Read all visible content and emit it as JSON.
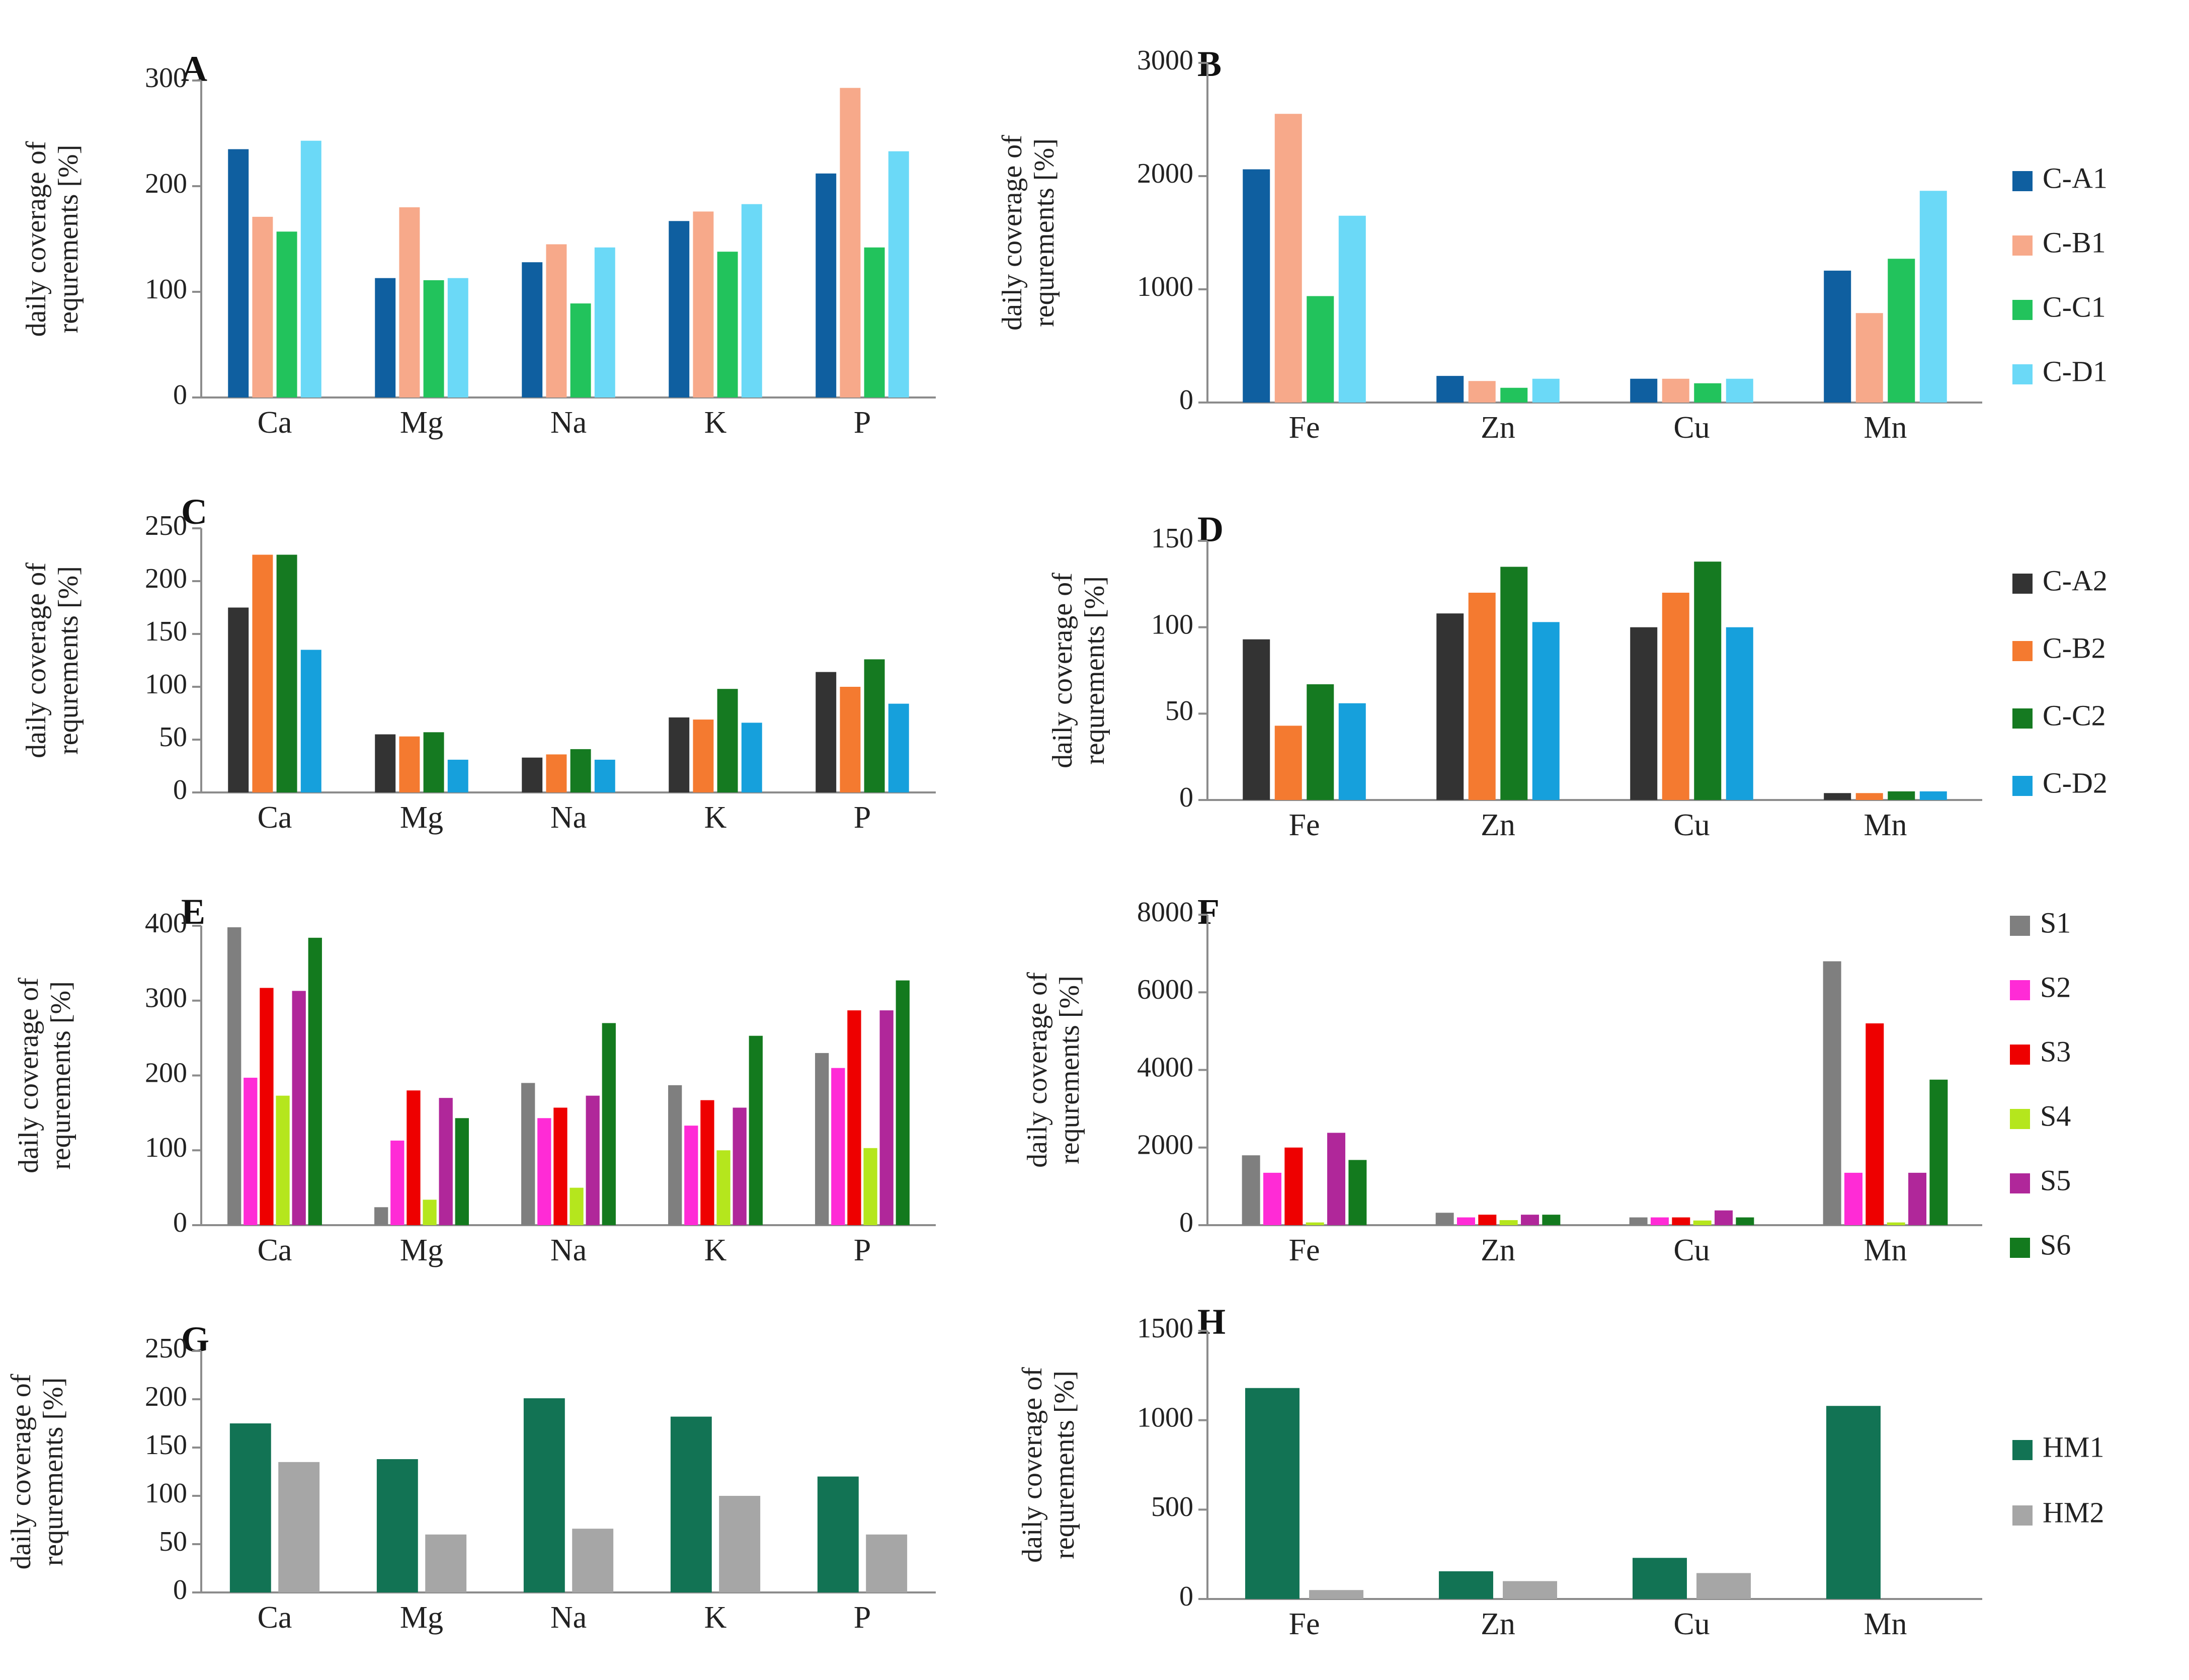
{
  "chart_data": [
    {
      "panel": "A",
      "type": "bar",
      "categories": [
        "Ca",
        "Mg",
        "Na",
        "K",
        "P"
      ],
      "ylabel": [
        "daily coverage of",
        "requrements [%]"
      ],
      "ylim": [
        0,
        300
      ],
      "yticks": [
        0,
        100,
        200,
        300
      ],
      "series": [
        {
          "name": "C-A1",
          "color": "#0f5fa0",
          "values": [
            235,
            113,
            128,
            167,
            212
          ]
        },
        {
          "name": "C-B1",
          "color": "#f7a98a",
          "values": [
            171,
            180,
            145,
            176,
            293
          ]
        },
        {
          "name": "C-C1",
          "color": "#22c35c",
          "values": [
            157,
            111,
            89,
            138,
            142
          ]
        },
        {
          "name": "C-D1",
          "color": "#6bd9f7",
          "values": [
            243,
            113,
            142,
            183,
            233
          ]
        }
      ]
    },
    {
      "panel": "B",
      "type": "bar",
      "categories": [
        "Fe",
        "Zn",
        "Cu",
        "Mn"
      ],
      "ylabel": [
        "daily coverage of",
        "requrements [%]"
      ],
      "ylim": [
        0,
        3000
      ],
      "yticks": [
        0,
        1000,
        2000,
        3000
      ],
      "series": [
        {
          "name": "C-A1",
          "color": "#0f5fa0",
          "values": [
            2060,
            235,
            210,
            1165
          ]
        },
        {
          "name": "C-B1",
          "color": "#f7a98a",
          "values": [
            2550,
            190,
            210,
            790
          ]
        },
        {
          "name": "C-C1",
          "color": "#22c35c",
          "values": [
            940,
            130,
            170,
            1270
          ]
        },
        {
          "name": "C-D1",
          "color": "#6bd9f7",
          "values": [
            1650,
            210,
            210,
            1870
          ]
        }
      ]
    },
    {
      "panel": "C",
      "type": "bar",
      "categories": [
        "Ca",
        "Mg",
        "Na",
        "K",
        "P"
      ],
      "ylabel": [
        "daily coverage of",
        "requrements [%]"
      ],
      "ylim": [
        0,
        250
      ],
      "yticks": [
        0,
        50,
        100,
        150,
        200,
        250
      ],
      "series": [
        {
          "name": "C-A2",
          "color": "#333333",
          "values": [
            175,
            55,
            33,
            71,
            114
          ]
        },
        {
          "name": "C-B2",
          "color": "#f47a30",
          "values": [
            225,
            53,
            36,
            69,
            100
          ]
        },
        {
          "name": "C-C2",
          "color": "#157a21",
          "values": [
            225,
            57,
            41,
            98,
            126
          ]
        },
        {
          "name": "C-D2",
          "color": "#16a0dc",
          "values": [
            135,
            31,
            31,
            66,
            84
          ]
        }
      ]
    },
    {
      "panel": "D",
      "type": "bar",
      "categories": [
        "Fe",
        "Zn",
        "Cu",
        "Mn"
      ],
      "ylabel": [
        "daily coverage of",
        "requrements [%]"
      ],
      "ylim": [
        0,
        150
      ],
      "yticks": [
        0,
        50,
        100,
        150
      ],
      "series": [
        {
          "name": "C-A2",
          "color": "#333333",
          "values": [
            93,
            108,
            100,
            4
          ]
        },
        {
          "name": "C-B2",
          "color": "#f47a30",
          "values": [
            43,
            120,
            120,
            4
          ]
        },
        {
          "name": "C-C2",
          "color": "#157a21",
          "values": [
            67,
            135,
            138,
            5
          ]
        },
        {
          "name": "C-D2",
          "color": "#16a0dc",
          "values": [
            56,
            103,
            100,
            5
          ]
        }
      ]
    },
    {
      "panel": "E",
      "type": "bar",
      "categories": [
        "Ca",
        "Mg",
        "Na",
        "K",
        "P"
      ],
      "ylabel": [
        "daily coverage of",
        "requrements [%]"
      ],
      "ylim": [
        0,
        400
      ],
      "yticks": [
        0,
        100,
        200,
        300,
        400
      ],
      "series": [
        {
          "name": "S1",
          "color": "#7f7f7f",
          "values": [
            398,
            24,
            190,
            187,
            230
          ]
        },
        {
          "name": "S2",
          "color": "#ff2bd6",
          "values": [
            197,
            113,
            143,
            133,
            210
          ]
        },
        {
          "name": "S3",
          "color": "#ee0000",
          "values": [
            317,
            180,
            157,
            167,
            287
          ]
        },
        {
          "name": "S4",
          "color": "#b5e61d",
          "values": [
            173,
            34,
            50,
            100,
            103
          ]
        },
        {
          "name": "S5",
          "color": "#b0279a",
          "values": [
            313,
            170,
            173,
            157,
            287
          ]
        },
        {
          "name": "S6",
          "color": "#137a1e",
          "values": [
            384,
            143,
            270,
            253,
            327
          ]
        }
      ]
    },
    {
      "panel": "F",
      "type": "bar",
      "categories": [
        "Fe",
        "Zn",
        "Cu",
        "Mn"
      ],
      "ylabel": [
        "daily coverage of",
        "requrements [%]"
      ],
      "ylim": [
        0,
        8000
      ],
      "yticks": [
        0,
        2000,
        4000,
        6000,
        8000
      ],
      "series": [
        {
          "name": "S1",
          "color": "#7f7f7f",
          "values": [
            1800,
            320,
            200,
            6800
          ]
        },
        {
          "name": "S2",
          "color": "#ff2bd6",
          "values": [
            1350,
            200,
            200,
            1350
          ]
        },
        {
          "name": "S3",
          "color": "#ee0000",
          "values": [
            2000,
            270,
            200,
            5200
          ]
        },
        {
          "name": "S4",
          "color": "#b5e61d",
          "values": [
            70,
            130,
            120,
            70
          ]
        },
        {
          "name": "S5",
          "color": "#b0279a",
          "values": [
            2380,
            270,
            380,
            1350
          ]
        },
        {
          "name": "S6",
          "color": "#137a1e",
          "values": [
            1680,
            270,
            200,
            3750
          ]
        }
      ]
    },
    {
      "panel": "G",
      "type": "bar",
      "categories": [
        "Ca",
        "Mg",
        "Na",
        "K",
        "P"
      ],
      "ylabel": [
        "daily coverage of",
        "requrements [%]"
      ],
      "ylim": [
        0,
        250
      ],
      "yticks": [
        0,
        50,
        100,
        150,
        200,
        250
      ],
      "series": [
        {
          "name": "HM1",
          "color": "#127354",
          "values": [
            175,
            138,
            201,
            182,
            120
          ]
        },
        {
          "name": "HM2",
          "color": "#a6a6a6",
          "values": [
            135,
            60,
            66,
            100,
            60
          ]
        }
      ]
    },
    {
      "panel": "H",
      "type": "bar",
      "categories": [
        "Fe",
        "Zn",
        "Cu",
        "Mn"
      ],
      "ylabel": [
        "daily coverage of",
        "requrements [%]"
      ],
      "ylim": [
        0,
        1500
      ],
      "yticks": [
        0,
        500,
        1000,
        1500
      ],
      "series": [
        {
          "name": "HM1",
          "color": "#127354",
          "values": [
            1180,
            155,
            230,
            1080
          ]
        },
        {
          "name": "HM2",
          "color": "#a6a6a6",
          "values": [
            50,
            100,
            145,
            0
          ]
        }
      ]
    }
  ],
  "legends": [
    {
      "row": 0,
      "items": [
        "C-A1",
        "C-B1",
        "C-C1",
        "C-D1"
      ],
      "colors": [
        "#0f5fa0",
        "#f7a98a",
        "#22c35c",
        "#6bd9f7"
      ]
    },
    {
      "row": 1,
      "items": [
        "C-A2",
        "C-B2",
        "C-C2",
        "C-D2"
      ],
      "colors": [
        "#333333",
        "#f47a30",
        "#157a21",
        "#16a0dc"
      ]
    },
    {
      "row": 2,
      "items": [
        "S1",
        "S2",
        "S3",
        "S4",
        "S5",
        "S6"
      ],
      "colors": [
        "#7f7f7f",
        "#ff2bd6",
        "#ee0000",
        "#b5e61d",
        "#b0279a",
        "#137a1e"
      ]
    },
    {
      "row": 3,
      "items": [
        "HM1",
        "HM2"
      ],
      "colors": [
        "#127354",
        "#a6a6a6"
      ]
    }
  ]
}
